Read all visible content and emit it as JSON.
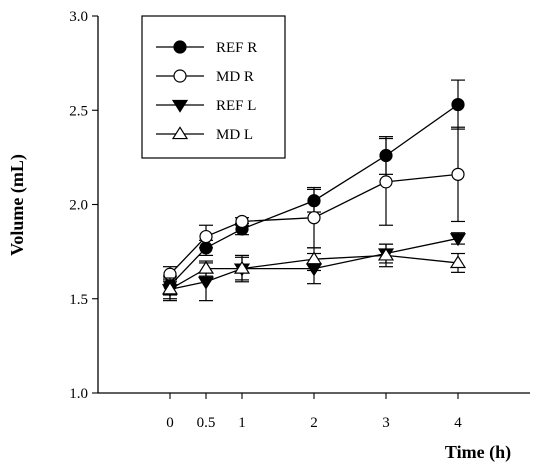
{
  "chart_data": {
    "type": "line",
    "xlabel": "Time (h)",
    "ylabel": "Volume (mL)",
    "x_ticks": [
      0,
      0.5,
      1,
      2,
      3,
      4
    ],
    "x_tick_labels": [
      "0",
      "0.5",
      "1",
      "2",
      "3",
      "4"
    ],
    "xlim": [
      -1,
      5
    ],
    "ylim": [
      1.0,
      3.0
    ],
    "y_ticks": [
      1.0,
      1.5,
      2.0,
      2.5,
      3.0
    ],
    "y_tick_labels": [
      "1.0",
      "1.5",
      "2.0",
      "2.5",
      "3.0"
    ],
    "grid": false,
    "legend_position": "top-left",
    "series": [
      {
        "name": "REF R",
        "marker": "filled-circle",
        "x": [
          0,
          0.5,
          1,
          2,
          3,
          4
        ],
        "y": [
          1.57,
          1.77,
          1.87,
          2.02,
          2.26,
          2.53
        ],
        "err": [
          0.05,
          0.04,
          0.03,
          0.06,
          0.1,
          0.13
        ]
      },
      {
        "name": "MD R",
        "marker": "open-circle",
        "x": [
          0,
          0.5,
          1,
          2,
          3,
          4
        ],
        "y": [
          1.63,
          1.83,
          1.91,
          1.93,
          2.12,
          2.16
        ],
        "err": [
          0.04,
          0.06,
          0.02,
          0.16,
          0.23,
          0.25
        ]
      },
      {
        "name": "REF L",
        "marker": "filled-triangle-down",
        "x": [
          0,
          0.5,
          1,
          2,
          3,
          4
        ],
        "y": [
          1.55,
          1.59,
          1.66,
          1.66,
          1.74,
          1.82
        ],
        "err": [
          0.06,
          0.1,
          0.07,
          0.08,
          0.05,
          0.03
        ]
      },
      {
        "name": "MD L",
        "marker": "open-triangle-up",
        "x": [
          0,
          0.5,
          1,
          2,
          3,
          4
        ],
        "y": [
          1.55,
          1.66,
          1.66,
          1.71,
          1.73,
          1.69
        ],
        "err": [
          0.05,
          0.04,
          0.06,
          0.06,
          0.06,
          0.05
        ]
      }
    ]
  }
}
